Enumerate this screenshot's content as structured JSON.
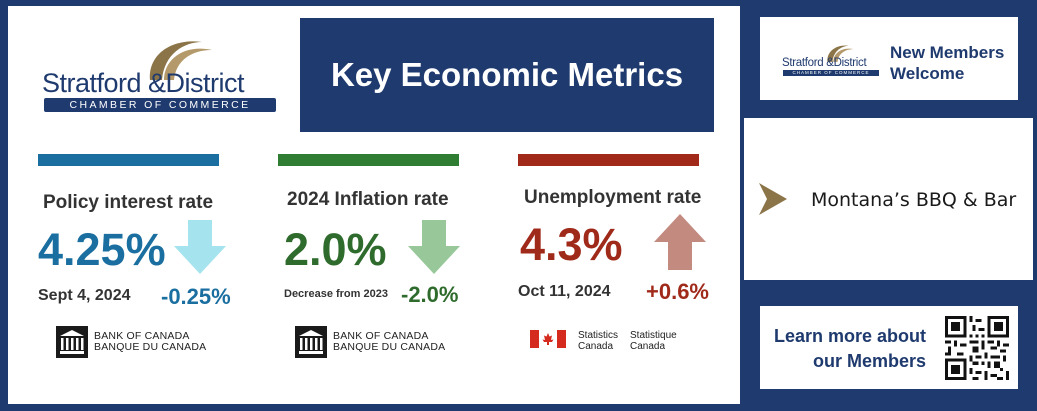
{
  "logo": {
    "name_line": "Stratford &District",
    "tagline": "CHAMBER OF COMMERCE"
  },
  "header": {
    "title": "Key Economic Metrics"
  },
  "metrics": [
    {
      "label": "Policy interest rate",
      "value": "4.25%",
      "date": "Sept 4, 2024",
      "change": "-0.25%",
      "direction": "down",
      "stripe_color": "#1a6fa0",
      "value_color": "#1a6fa0",
      "arrow_color": "#a5e4ee",
      "source": {
        "line1": "BANK OF CANADA",
        "line2": "BANQUE DU CANADA"
      }
    },
    {
      "label": "2024 Inflation rate",
      "value": "2.0%",
      "date": "Decrease from 2023",
      "change": "-2.0%",
      "direction": "down",
      "stripe_color": "#2e7d32",
      "value_color": "#2e6b2c",
      "arrow_color": "#98c89a",
      "source": {
        "line1": "BANK OF CANADA",
        "line2": "BANQUE DU CANADA"
      }
    },
    {
      "label": "Unemployment rate",
      "value": "4.3%",
      "date": "Oct 11, 2024",
      "change": "+0.6%",
      "direction": "up",
      "stripe_color": "#a0291a",
      "value_color": "#a02a1a",
      "arrow_color": "#c38a80",
      "source": {
        "en1": "Statistics",
        "en2": "Canada",
        "fr1": "Statistique",
        "fr2": "Canada"
      }
    }
  ],
  "side": {
    "members": {
      "line1": "New Members",
      "line2": "Welcome"
    },
    "feature": {
      "name": "Montana’s BBQ & Bar",
      "chevron_color": "#8b7448"
    },
    "learn": {
      "line1": "Learn more about",
      "line2": "our Members"
    }
  },
  "colors": {
    "navy": "#1f3a6e",
    "gold": "#8b7448"
  }
}
